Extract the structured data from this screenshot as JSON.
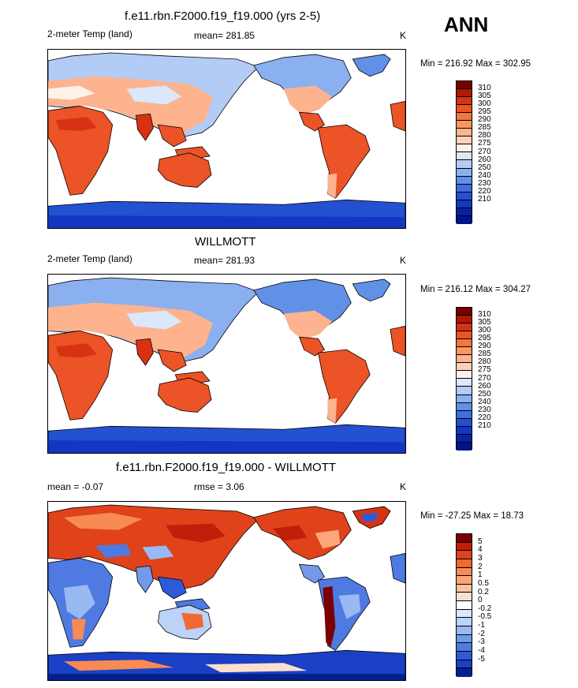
{
  "season": "ANN",
  "colors": {
    "abs": [
      "#7a0000",
      "#b01805",
      "#d73313",
      "#ec5326",
      "#f5753e",
      "#fb9663",
      "#fcb38e",
      "#fdd2b7",
      "#fcf2e8",
      "#dbe7fb",
      "#b3ccf5",
      "#8ab0ef",
      "#6190e7",
      "#3d6fde",
      "#2450d2",
      "#1337c0",
      "#0822a6",
      "#021388"
    ],
    "diff": [
      "#7a0000",
      "#c0200a",
      "#e0421a",
      "#f06832",
      "#f88a54",
      "#fba77a",
      "#fcc3a2",
      "#fde0cc",
      "#ffffff",
      "#dbe7fb",
      "#bcd2f6",
      "#98b9f1",
      "#7299ea",
      "#4f7ae2",
      "#2f5ad7",
      "#1a40c6",
      "#04208f"
    ]
  },
  "panels": [
    {
      "title": "f.e11.rbn.F2000.f19_f19.000 (yrs 2-5)",
      "left_label": "2-meter Temp (land)",
      "center_label": "mean= 281.85",
      "units": "K",
      "minmax": "Min = 216.92 Max = 302.95",
      "ticks": [
        "310",
        "305",
        "300",
        "295",
        "290",
        "285",
        "280",
        "275",
        "270",
        "260",
        "250",
        "240",
        "230",
        "220",
        "210"
      ],
      "kind": "abs"
    },
    {
      "title": "WILLMOTT",
      "left_label": "2-meter Temp (land)",
      "center_label": "mean= 281.93",
      "units": "K",
      "minmax": "Min = 216.12 Max = 304.27",
      "ticks": [
        "310",
        "305",
        "300",
        "295",
        "290",
        "285",
        "280",
        "275",
        "270",
        "260",
        "250",
        "240",
        "230",
        "220",
        "210"
      ],
      "kind": "abs"
    },
    {
      "title": "f.e11.rbn.F2000.f19_f19.000 - WILLMOTT",
      "left_label": "mean =  -0.07",
      "center_label": "rmse =   3.06",
      "units": "K",
      "minmax": "Min = -27.25 Max =  18.73",
      "ticks": [
        "5",
        "4",
        "3",
        "2",
        "1",
        "0.5",
        "0.2",
        "0",
        "-0.2",
        "-0.5",
        "-1",
        "-2",
        "-3",
        "-4",
        "-5"
      ],
      "kind": "diff"
    }
  ]
}
